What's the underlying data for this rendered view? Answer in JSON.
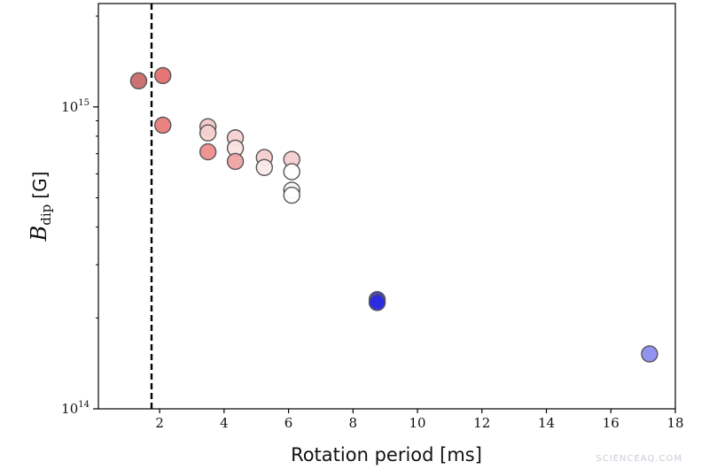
{
  "chart_data": {
    "type": "scatter",
    "xlabel": "Rotation period [ms]",
    "ylabel": {
      "main": "B",
      "subscript": "dip",
      "unit": "[G]"
    },
    "xlim": [
      0.1,
      18
    ],
    "ylim": [
      100000000000000.0,
      2200000000000000.0
    ],
    "y_scale": "log",
    "x_ticks": [
      2,
      4,
      6,
      8,
      10,
      12,
      14,
      16,
      18
    ],
    "y_ticks": [
      {
        "value": 100000000000000.0,
        "base": "10",
        "exp": "14"
      },
      {
        "value": 1000000000000000.0,
        "base": "10",
        "exp": "15"
      }
    ],
    "grid": false,
    "vline": {
      "x": 1.75,
      "style": "dashed",
      "color": "#000000"
    },
    "points": [
      {
        "x": 1.35,
        "y": 1220000000000000.0,
        "color": "#c96a6a"
      },
      {
        "x": 2.1,
        "y": 1270000000000000.0,
        "color": "#e36f6f"
      },
      {
        "x": 2.1,
        "y": 870000000000000.0,
        "color": "#ea7b7b"
      },
      {
        "x": 3.5,
        "y": 860000000000000.0,
        "color": "#f3c6c6"
      },
      {
        "x": 3.5,
        "y": 820000000000000.0,
        "color": "#f5d2d2"
      },
      {
        "x": 3.5,
        "y": 710000000000000.0,
        "color": "#ef8d8d"
      },
      {
        "x": 4.35,
        "y": 790000000000000.0,
        "color": "#f6d0d0"
      },
      {
        "x": 4.35,
        "y": 730000000000000.0,
        "color": "#f9e2e2"
      },
      {
        "x": 4.35,
        "y": 660000000000000.0,
        "color": "#f0a3a3"
      },
      {
        "x": 5.25,
        "y": 680000000000000.0,
        "color": "#f6cccc"
      },
      {
        "x": 5.25,
        "y": 630000000000000.0,
        "color": "#faeaea"
      },
      {
        "x": 6.1,
        "y": 670000000000000.0,
        "color": "#f6cfcf"
      },
      {
        "x": 6.1,
        "y": 610000000000000.0,
        "color": "#ffffff"
      },
      {
        "x": 6.1,
        "y": 530000000000000.0,
        "color": "#f7f7fb"
      },
      {
        "x": 6.1,
        "y": 510000000000000.0,
        "color": "#ffffff"
      },
      {
        "x": 8.75,
        "y": 230000000000000.0,
        "color": "#3a3ad0"
      },
      {
        "x": 8.75,
        "y": 225000000000000.0,
        "color": "#2a2ae2"
      },
      {
        "x": 17.2,
        "y": 152000000000000.0,
        "color": "#8c8cf0"
      }
    ]
  },
  "watermark": "SCIENCEAQ.COM"
}
